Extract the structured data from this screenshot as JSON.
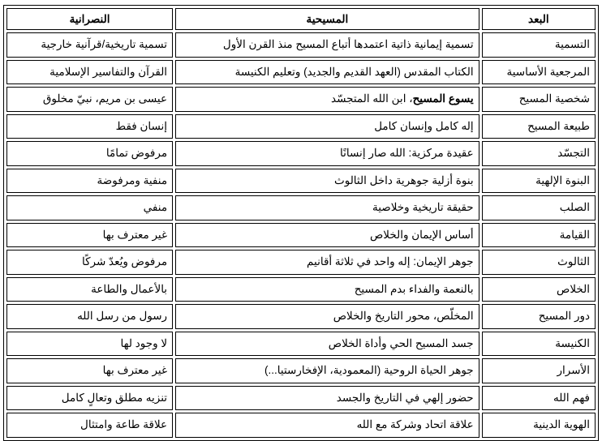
{
  "headers": [
    "البعد",
    "المسيحية",
    "النصرانية"
  ],
  "rows": [
    {
      "dimension": "التسمية",
      "christianity": "تسمية إيمانية ذاتية اعتمدها أتباع المسيح منذ القرن الأول",
      "nasraniyya": "تسمية تاريخية/قرآنية خارجية"
    },
    {
      "dimension": "المرجعية الأساسية",
      "christianity": "الكتاب المقدس (العهد القديم والجديد) وتعليم الكنيسة",
      "nasraniyya": "القرآن والتفاسير الإسلامية"
    },
    {
      "dimension": "شخصية المسيح",
      "christianity_bold": "يسوع المسيح",
      "christianity": "، ابن الله المتجسّد",
      "nasraniyya": "عيسى بن مريم، نبيّ مخلوق"
    },
    {
      "dimension": "طبيعة المسيح",
      "christianity": "إله كامل وإنسان كامل",
      "nasraniyya": "إنسان فقط"
    },
    {
      "dimension": "التجسّد",
      "christianity": "عقيدة مركزية: الله صار إنسانًا",
      "nasraniyya": "مرفوض تمامًا"
    },
    {
      "dimension": "البنوة الإلهية",
      "christianity": "بنوة أزلية جوهرية داخل الثالوث",
      "nasraniyya": "منفية ومرفوضة"
    },
    {
      "dimension": "الصلب",
      "christianity": "حقيقة تاريخية وخلاصية",
      "nasraniyya": "منفي"
    },
    {
      "dimension": "القيامة",
      "christianity": "أساس الإيمان والخلاص",
      "nasraniyya": "غير معترف بها"
    },
    {
      "dimension": "الثالوث",
      "christianity": "جوهر الإيمان: إله واحد في ثلاثة أقانيم",
      "nasraniyya": "مرفوض ويُعدّ شركًا"
    },
    {
      "dimension": "الخلاص",
      "christianity": "بالنعمة والفداء بدم المسيح",
      "nasraniyya": "بالأعمال والطاعة"
    },
    {
      "dimension": "دور المسيح",
      "christianity": "المخلّص، محور التاريخ والخلاص",
      "nasraniyya": "رسول من رسل الله"
    },
    {
      "dimension": "الكنيسة",
      "christianity": "جسد المسيح الحي وأداة الخلاص",
      "nasraniyya": "لا وجود لها"
    },
    {
      "dimension": "الأسرار",
      "christianity": "جوهر الحياة الروحية (المعمودية، الإفخارستيا...)",
      "nasraniyya": "غير معترف بها"
    },
    {
      "dimension": "فهم الله",
      "christianity": "حضور إلهي في التاريخ والجسد",
      "nasraniyya": "تنزيه مطلق وتعالٍ كامل"
    },
    {
      "dimension": "الهوية الدينية",
      "christianity": "علاقة اتحاد وشركة مع الله",
      "nasraniyya": "علاقة طاعة وامتثال"
    }
  ]
}
